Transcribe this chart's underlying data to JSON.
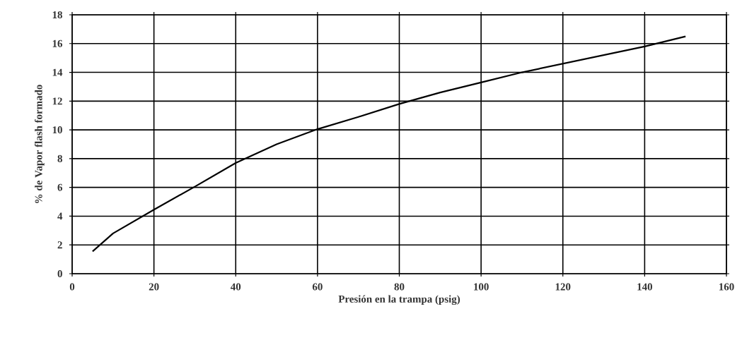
{
  "chart_data": {
    "type": "line",
    "xlabel": "Presión en la trampa (psig)",
    "ylabel": "% de Vapor flash formado",
    "x": [
      5,
      10,
      20,
      30,
      40,
      50,
      60,
      70,
      80,
      90,
      100,
      110,
      120,
      130,
      140,
      150
    ],
    "series": [
      {
        "color": "#000000",
        "values": [
          1.55,
          2.8,
          4.45,
          6.05,
          7.7,
          9.0,
          10.05,
          10.9,
          11.8,
          12.6,
          13.3,
          14.0,
          14.6,
          15.2,
          15.8,
          16.5
        ]
      }
    ],
    "xlim": [
      0,
      160
    ],
    "ylim": [
      0,
      18
    ],
    "xticks": [
      0,
      20,
      40,
      60,
      80,
      100,
      120,
      140,
      160
    ],
    "yticks": [
      0,
      2,
      4,
      6,
      8,
      10,
      12,
      14,
      16,
      18
    ],
    "grid": true,
    "marker": "none",
    "line_style": "solid"
  }
}
